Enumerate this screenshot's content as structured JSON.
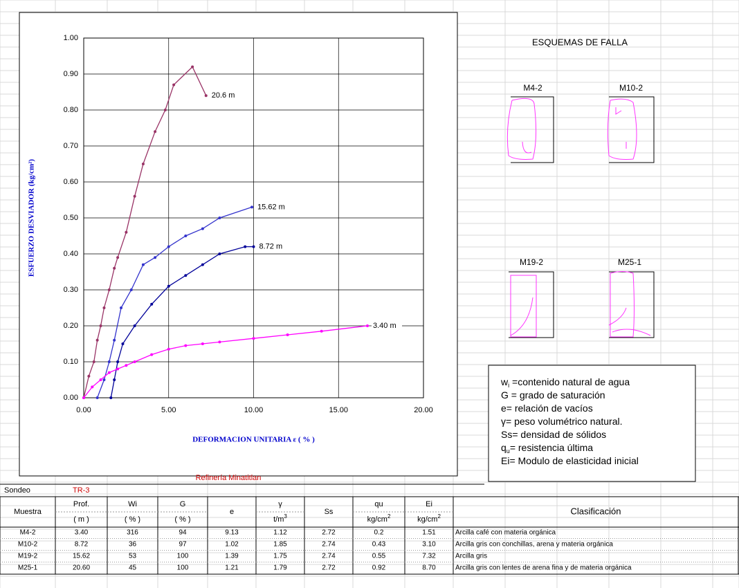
{
  "chart_data": {
    "type": "line",
    "y_label": "ESFUERZO DESVIADOR  (kg/cm²)",
    "x_label": "DEFORMACION UNITARIA ε ( % )",
    "xlim": [
      0,
      20
    ],
    "ylim": [
      0,
      1
    ],
    "xticks": [
      {
        "value": 0,
        "label": "0.00"
      },
      {
        "value": 5,
        "label": "5.00"
      },
      {
        "value": 10,
        "label": "10.00"
      },
      {
        "value": 15,
        "label": "15.00"
      },
      {
        "value": 20,
        "label": "20.00"
      }
    ],
    "yticks": [
      {
        "value": 0,
        "label": "0.00"
      },
      {
        "value": 0.1,
        "label": "0.10"
      },
      {
        "value": 0.2,
        "label": "0.20"
      },
      {
        "value": 0.3,
        "label": "0.30"
      },
      {
        "value": 0.4,
        "label": "0.40"
      },
      {
        "value": 0.5,
        "label": "0.50"
      },
      {
        "value": 0.6,
        "label": "0.60"
      },
      {
        "value": 0.7,
        "label": "0.70"
      },
      {
        "value": 0.8,
        "label": "0.80"
      },
      {
        "value": 0.9,
        "label": "0.90"
      },
      {
        "value": 1,
        "label": "1.00"
      }
    ],
    "grid": true,
    "series": [
      {
        "name": "20.6 m",
        "color": "#993366",
        "x": [
          0,
          0.3,
          0.6,
          0.8,
          1.0,
          1.2,
          1.5,
          1.8,
          2.0,
          2.5,
          3.0,
          3.5,
          4.2,
          4.8,
          5.3,
          6.4,
          7.2
        ],
        "values": [
          0,
          0.06,
          0.1,
          0.16,
          0.2,
          0.25,
          0.3,
          0.36,
          0.39,
          0.46,
          0.56,
          0.65,
          0.74,
          0.8,
          0.87,
          0.92,
          0.84
        ]
      },
      {
        "name": "15.62 m",
        "color": "#3333cc",
        "x": [
          0.8,
          1.2,
          1.5,
          1.8,
          2.2,
          2.8,
          3.5,
          4.2,
          5.0,
          6.0,
          7.0,
          8.0,
          9.9
        ],
        "values": [
          0,
          0.05,
          0.1,
          0.16,
          0.25,
          0.3,
          0.37,
          0.39,
          0.42,
          0.45,
          0.47,
          0.5,
          0.53
        ]
      },
      {
        "name": "8.72 m",
        "color": "#000099",
        "x": [
          1.6,
          1.8,
          2.0,
          2.3,
          3.0,
          4.0,
          5.0,
          6.0,
          7.0,
          8.0,
          9.5,
          10.0
        ],
        "values": [
          0,
          0.05,
          0.1,
          0.15,
          0.2,
          0.26,
          0.31,
          0.34,
          0.37,
          0.4,
          0.42,
          0.42
        ]
      },
      {
        "name": "3.40 m",
        "color": "#ff00ff",
        "x": [
          0,
          0.5,
          1.0,
          1.5,
          2.0,
          2.5,
          3.0,
          4.0,
          5.0,
          6.0,
          7.0,
          8.0,
          10.0,
          12.0,
          14.0,
          16.7
        ],
        "values": [
          0,
          0.03,
          0.05,
          0.07,
          0.08,
          0.09,
          0.1,
          0.12,
          0.135,
          0.145,
          0.15,
          0.155,
          0.165,
          0.175,
          0.185,
          0.2
        ]
      }
    ]
  },
  "schemes": {
    "title": "ESQUEMAS DE FALLA",
    "samples": [
      "M4-2",
      "M10-2",
      "M19-2",
      "M25-1"
    ]
  },
  "notes": [
    {
      "sym": "w",
      "sub": "i",
      "text": " =contenido natural de agua"
    },
    {
      "sym": "G",
      "text": " = grado de saturación"
    },
    {
      "sym": "e",
      "text": "= relación de vacíos"
    },
    {
      "sym": "γ",
      "text": "= peso volumétrico natural."
    },
    {
      "sym": "Ss",
      "text": "= densidad de sólidos"
    },
    {
      "sym": "q",
      "sub": "u",
      "text": "= resistencia última"
    },
    {
      "sym": "Ei",
      "text": "= Modulo de elasticidad inicial"
    }
  ],
  "table": {
    "title": "Refinería Minatitlan",
    "sondeo_label": "Sondeo",
    "sondeo": "TR-3",
    "header": [
      {
        "name": "Muestra"
      },
      {
        "name": "Prof.",
        "unit": "( m )"
      },
      {
        "name": "Wi",
        "unit": "( % )"
      },
      {
        "name": "G",
        "unit": "( % )"
      },
      {
        "name": "e"
      },
      {
        "name": "γ",
        "unit": "t/m",
        "unit_sup": "3"
      },
      {
        "name": "Ss"
      },
      {
        "name": "qu",
        "unit": "kg/cm",
        "unit_sup": "2"
      },
      {
        "name": "Ei",
        "unit": "kg/cm",
        "unit_sup": "2"
      },
      {
        "name": "Clasificación"
      }
    ],
    "rows": [
      [
        "M4-2",
        "3.40",
        "316",
        "94",
        "9.13",
        "1.12",
        "2.72",
        "0.2",
        "1.51",
        "Arcilla café con materia orgánica"
      ],
      [
        "M10-2",
        "8.72",
        "36",
        "97",
        "1.02",
        "1.85",
        "2.74",
        "0.43",
        "3.10",
        "Arcilla gris con conchillas, arena y materia orgánica"
      ],
      [
        "M19-2",
        "15.62",
        "53",
        "100",
        "1.39",
        "1.75",
        "2.74",
        "0.55",
        "7.32",
        "Arcilla gris"
      ],
      [
        "M25-1",
        "20.60",
        "45",
        "100",
        "1.21",
        "1.79",
        "2.72",
        "0.92",
        "8.70",
        "Arcilla gris con lentes  de arena fina y de materia orgánica"
      ]
    ]
  }
}
